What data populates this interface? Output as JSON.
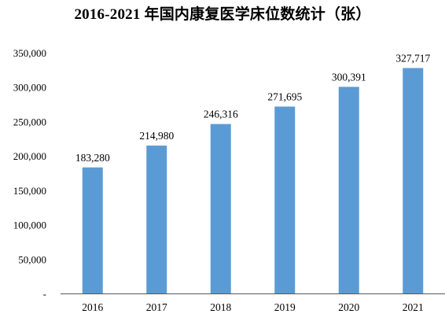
{
  "chart_data": {
    "type": "bar",
    "title": "2016-2021 年国内康复医学床位数统计（张）",
    "categories": [
      "2016",
      "2017",
      "2018",
      "2019",
      "2020",
      "2021"
    ],
    "values": [
      183280,
      214980,
      246316,
      271695,
      300391,
      327717
    ],
    "data_labels": [
      "183,280",
      "214,980",
      "246,316",
      "271,695",
      "300,391",
      "327,717"
    ],
    "y_ticks": [
      {
        "value": 0,
        "label": "-"
      },
      {
        "value": 50000,
        "label": "50,000"
      },
      {
        "value": 100000,
        "label": "100,000"
      },
      {
        "value": 150000,
        "label": "150,000"
      },
      {
        "value": 200000,
        "label": "200,000"
      },
      {
        "value": 250000,
        "label": "250,000"
      },
      {
        "value": 300000,
        "label": "300,000"
      },
      {
        "value": 350000,
        "label": "350,000"
      }
    ],
    "ylim": [
      0,
      350000
    ],
    "grid": false,
    "legend": "none",
    "bar_color": "#5b9bd5",
    "axis_color": "#595959"
  }
}
